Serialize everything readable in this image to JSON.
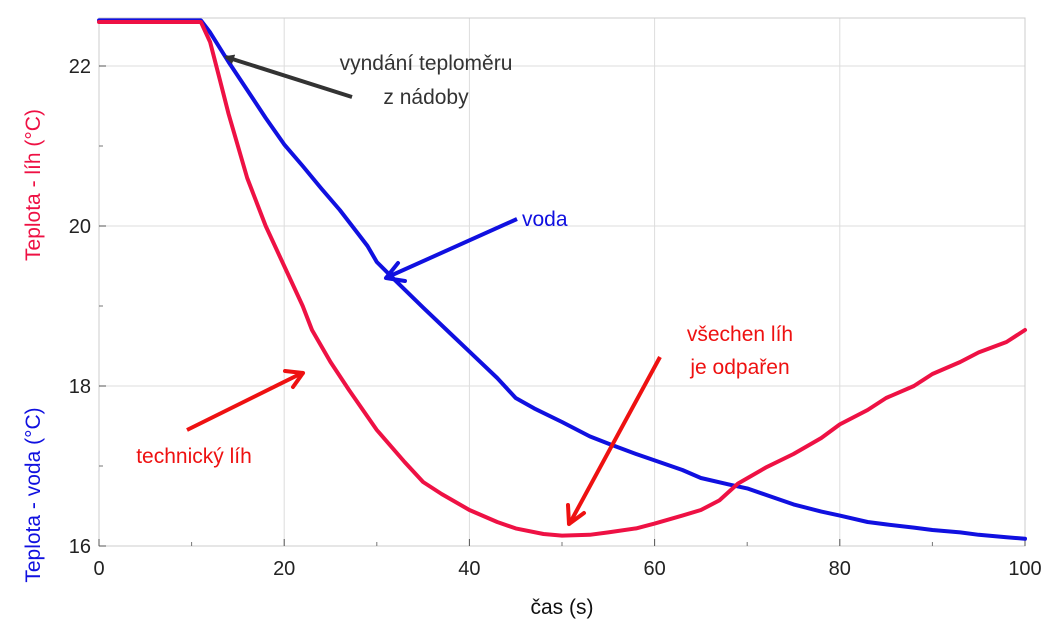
{
  "chart_data": {
    "type": "line",
    "xlabel": "čas (s)",
    "ylabel_voda": "Teplota - voda (°C)",
    "ylabel_lih": "Teplota - líh (°C)",
    "xlim": [
      0,
      100
    ],
    "ylim": [
      16,
      22.6
    ],
    "x_ticks": [
      "0",
      "20",
      "40",
      "60",
      "80",
      "100"
    ],
    "y_ticks": [
      "16",
      "18",
      "20",
      "22"
    ],
    "grid": true,
    "series": [
      {
        "name": "voda",
        "color": "#1010e0",
        "x": [
          0,
          11,
          12,
          14,
          16,
          18,
          20,
          22,
          24,
          26,
          28,
          29,
          30,
          32,
          35,
          38,
          40,
          43,
          45,
          47,
          50,
          53,
          55,
          58,
          60,
          63,
          65,
          68,
          70,
          73,
          75,
          78,
          80,
          83,
          85,
          88,
          90,
          93,
          95,
          98,
          100
        ],
        "y": [
          22.57,
          22.57,
          22.42,
          22.05,
          21.7,
          21.35,
          21.02,
          20.75,
          20.47,
          20.2,
          19.9,
          19.75,
          19.55,
          19.32,
          18.98,
          18.65,
          18.43,
          18.1,
          17.85,
          17.72,
          17.55,
          17.37,
          17.28,
          17.15,
          17.07,
          16.95,
          16.85,
          16.77,
          16.72,
          16.6,
          16.52,
          16.43,
          16.38,
          16.3,
          16.27,
          16.23,
          16.2,
          16.17,
          16.14,
          16.11,
          16.09
        ]
      },
      {
        "name": "technický líh",
        "color": "#ee1144",
        "x": [
          0,
          11,
          12,
          13,
          14,
          15,
          16,
          18,
          20,
          22,
          23,
          25,
          27,
          30,
          33,
          35,
          37,
          40,
          43,
          45,
          48,
          50,
          53,
          55,
          58,
          60,
          63,
          65,
          67,
          69,
          72,
          75,
          78,
          80,
          83,
          85,
          88,
          90,
          93,
          95,
          98,
          100
        ],
        "y": [
          22.55,
          22.55,
          22.3,
          21.85,
          21.4,
          21.0,
          20.6,
          20.0,
          19.5,
          19.0,
          18.7,
          18.3,
          17.95,
          17.45,
          17.05,
          16.8,
          16.65,
          16.45,
          16.3,
          16.22,
          16.15,
          16.13,
          16.14,
          16.17,
          16.22,
          16.28,
          16.38,
          16.45,
          16.57,
          16.78,
          16.98,
          17.15,
          17.35,
          17.52,
          17.7,
          17.85,
          18.0,
          18.15,
          18.3,
          18.42,
          18.55,
          18.7
        ]
      }
    ],
    "annotations": [
      {
        "line1": "vyndání teploměru",
        "line2": "z nádoby",
        "color": "#333333"
      },
      {
        "line1": "voda",
        "line2": "",
        "color": "#1010e0"
      },
      {
        "line1": "všechen líh",
        "line2": "je odpařen",
        "color": "#ee1111"
      },
      {
        "line1": "technický líh",
        "line2": "",
        "color": "#ee1111"
      }
    ]
  }
}
